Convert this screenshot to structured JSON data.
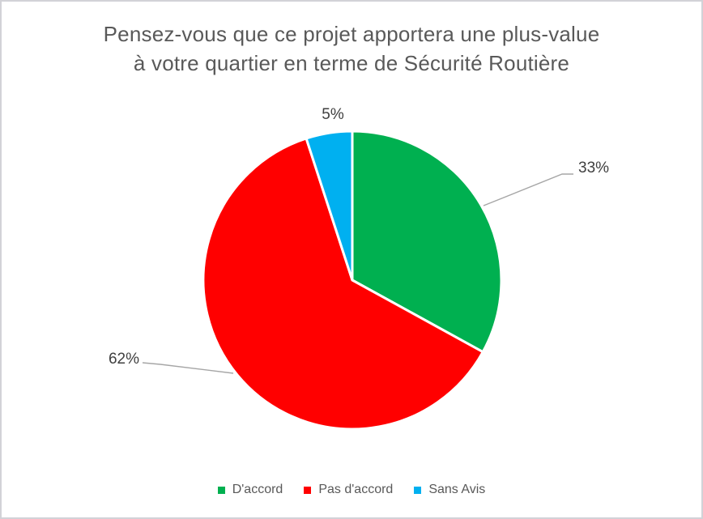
{
  "title": {
    "lines": [
      "Pensez-vous que ce projet apportera une plus-value",
      "à votre quartier en terme de Sécurité Routière"
    ],
    "full": "Pensez-vous que ce projet apportera une plus-value à votre quartier en terme de Sécurité Routière"
  },
  "chart_data": {
    "type": "pie",
    "title": "Pensez-vous que ce projet apportera une plus-value à votre quartier en terme de Sécurité Routière",
    "categories": [
      "D'accord",
      "Pas d'accord",
      "Sans Avis"
    ],
    "values": [
      33,
      62,
      5
    ],
    "unit": "percent",
    "percent_labels": [
      "33%",
      "62%",
      "5%"
    ],
    "colors": [
      "#00B050",
      "#FF0000",
      "#00B0F0"
    ],
    "start_angle_deg": 0,
    "direction": "clockwise",
    "legend_position": "bottom",
    "slice_separator_color": "#FFFFFF"
  },
  "legend": {
    "items": [
      {
        "label": "D'accord",
        "color": "#00B050"
      },
      {
        "label": "Pas d'accord",
        "color": "#FF0000"
      },
      {
        "label": "Sans Avis",
        "color": "#00B0F0"
      }
    ]
  },
  "styles": {
    "title_color": "#595959",
    "legend_text_color": "#595959",
    "data_label_color": "#3F3F3F",
    "leader_line_color": "#A6A6A6",
    "page_border_color": "#D2D2D7",
    "background_color": "#FFFFFF"
  }
}
